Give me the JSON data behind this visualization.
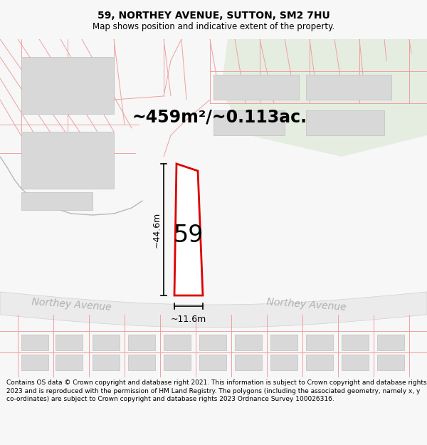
{
  "title": "59, NORTHEY AVENUE, SUTTON, SM2 7HU",
  "subtitle": "Map shows position and indicative extent of the property.",
  "area_text": "~459m²/~0.113ac.",
  "property_number": "59",
  "dim_height": "~44.6m",
  "dim_width": "~11.6m",
  "street_name": "Northey Avenue",
  "footer": "Contains OS data © Crown copyright and database right 2021. This information is subject to Crown copyright and database rights 2023 and is reproduced with the permission of HM Land Registry. The polygons (including the associated geometry, namely x, y co-ordinates) are subject to Crown copyright and database rights 2023 Ordnance Survey 100026316.",
  "bg_color": "#f7f7f7",
  "map_bg": "#ffffff",
  "green_area_color": "#e4ede0",
  "property_stroke": "#dd0000",
  "property_fill": "#ffffff",
  "road_fill": "#ebebeb",
  "road_edge": "#d0d0d0",
  "block_color": "#d8d8d8",
  "block_edge": "#c0c0c0",
  "pink_line": "#f0a0a0",
  "gray_line": "#b8b8b8",
  "street_text_color": "#b0b0b0",
  "title_size": 10,
  "subtitle_size": 8.5,
  "area_text_size": 17,
  "num_size": 24,
  "dim_size": 9,
  "street_size": 10,
  "footer_size": 6.5
}
